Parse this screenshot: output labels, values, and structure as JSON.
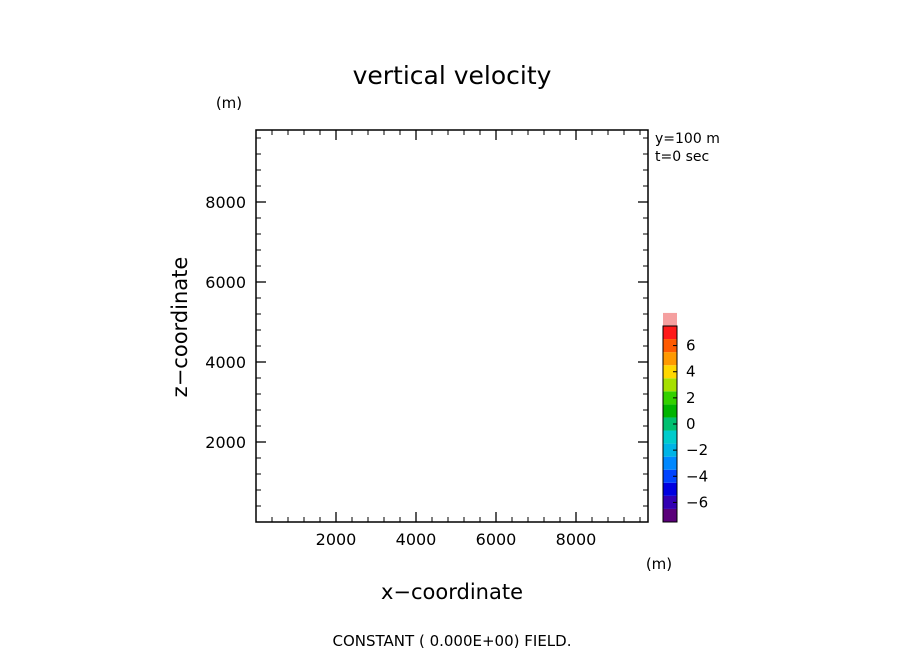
{
  "chart_data": {
    "type": "heatmap",
    "title": "vertical velocity",
    "xlabel": "x−coordinate",
    "ylabel": "z−coordinate",
    "x_unit": "(m)",
    "y_unit": "(m)",
    "xlim": [
      0,
      9800
    ],
    "ylim": [
      0,
      9800
    ],
    "x_ticks": [
      {
        "value": 2000,
        "label": "2000"
      },
      {
        "value": 4000,
        "label": "4000"
      },
      {
        "value": 6000,
        "label": "6000"
      },
      {
        "value": 8000,
        "label": "8000"
      }
    ],
    "y_ticks": [
      {
        "value": 2000,
        "label": "2000"
      },
      {
        "value": 4000,
        "label": "4000"
      },
      {
        "value": 6000,
        "label": "6000"
      },
      {
        "value": 8000,
        "label": "8000"
      }
    ],
    "minor_tick_step": 400,
    "grid": false,
    "field_value": 0,
    "info_lines": [
      "y=100 m",
      "t=0 sec"
    ],
    "footer": "CONSTANT ( 0.000E+00) FIELD.",
    "colorbar": {
      "min": -7.5,
      "max": 7.5,
      "step": 1,
      "colors": [
        "#5a007a",
        "#3300b3",
        "#0000e0",
        "#0044ff",
        "#0088ff",
        "#00b4e6",
        "#00cccc",
        "#00c070",
        "#00b400",
        "#33d100",
        "#a6e000",
        "#ffd700",
        "#ff9900",
        "#ff5a00",
        "#ff1a1a",
        "#f5a0a0"
      ],
      "ticks": [
        {
          "value": -6,
          "label": "−6"
        },
        {
          "value": -4,
          "label": "−4"
        },
        {
          "value": -2,
          "label": "−2"
        },
        {
          "value": 0,
          "label": "0"
        },
        {
          "value": 2,
          "label": "2"
        },
        {
          "value": 4,
          "label": "4"
        },
        {
          "value": 6,
          "label": "6"
        }
      ]
    }
  }
}
